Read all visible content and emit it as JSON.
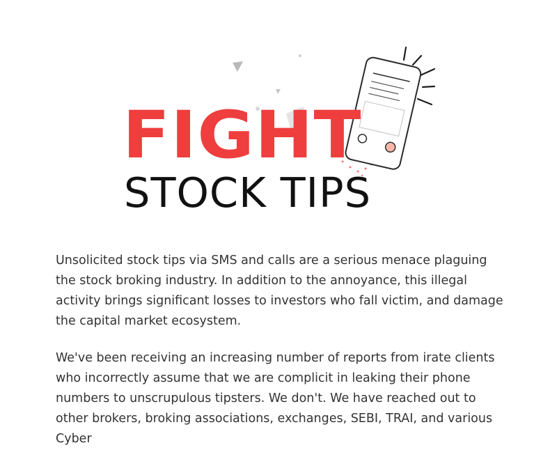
{
  "logo": {
    "line1": "FIGHT",
    "line2": "STOCK TIPS",
    "accent_color": "#ee3e3e",
    "icons": [
      "phone-icon",
      "ringing-lines-icon"
    ]
  },
  "article": {
    "paragraphs": [
      "Unsolicited stock tips via SMS and calls are a serious menace plaguing the stock broking industry. In addition to the annoyance, this illegal activity brings significant losses to investors who fall victim, and damage the capital market ecosystem.",
      "We've been receiving an increasing number of reports from irate clients who incorrectly assume that we are complicit in leaking their phone numbers to unscrupulous tipsters. We don't. We have reached out to other brokers, broking associations, exchanges, SEBI, TRAI, and various Cyber"
    ]
  }
}
